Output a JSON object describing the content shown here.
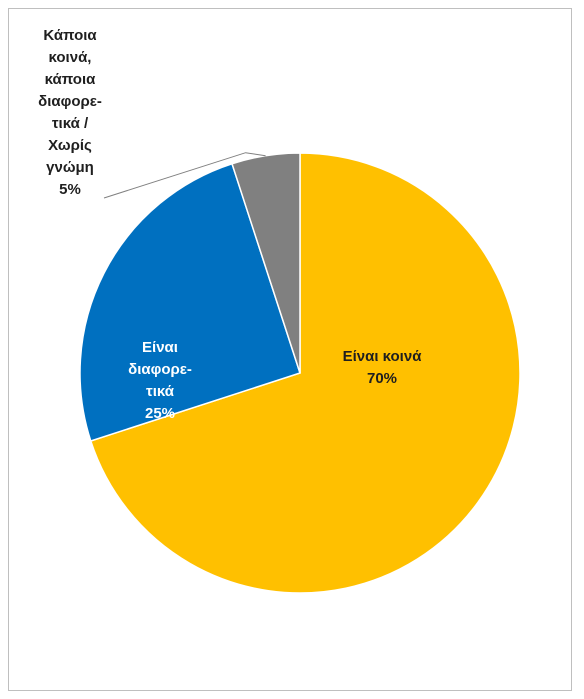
{
  "chart_data": {
    "type": "pie",
    "title": "",
    "slices": [
      {
        "label_lines": [
          "Είναι κοινά"
        ],
        "value": 70,
        "value_label": "70%",
        "color": "#FFC000",
        "label_color": "#1F1F1F"
      },
      {
        "label_lines": [
          "Είναι",
          "διαφορε-",
          "τικά"
        ],
        "value": 25,
        "value_label": "25%",
        "color": "#0070C0",
        "label_color": "#FFFFFF"
      },
      {
        "label_lines": [
          "Κάποια",
          "κοινά,",
          "κάποια",
          "διαφορε-",
          "τικά /",
          "Χωρίς",
          "γνώμη"
        ],
        "value": 5,
        "value_label": "5%",
        "color": "#808080",
        "label_color": "#1F1F1F"
      }
    ],
    "start_angle_deg": 0,
    "direction": "clockwise",
    "legend": "none",
    "leader_line_on_small_slice": true
  }
}
